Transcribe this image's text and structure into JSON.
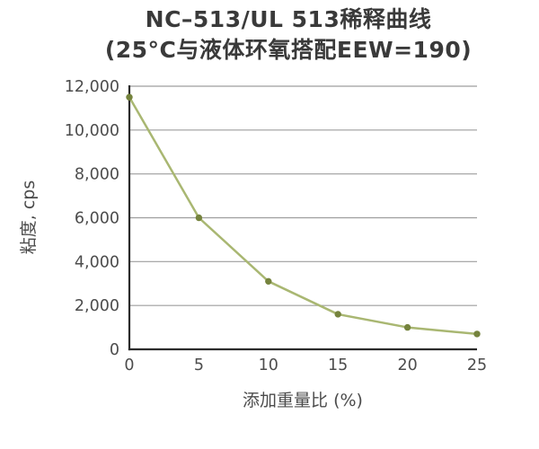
{
  "chart_data": {
    "type": "line",
    "title": "NC–513/UL 513稀释曲线",
    "subtitle": "(25°C与液体环氧搭配EEW=190)",
    "x": [
      0,
      5,
      10,
      15,
      20,
      25
    ],
    "series": [
      {
        "name": "粘度",
        "values": [
          11500,
          6000,
          3100,
          1600,
          1000,
          700
        ]
      }
    ],
    "xlabel": "添加重量比 (%)",
    "ylabel": "粘度, cps",
    "xlim": [
      0,
      25
    ],
    "ylim": [
      0,
      12000
    ],
    "xticks": {
      "values": [
        0,
        5,
        10,
        15,
        20,
        25
      ],
      "labels": [
        "0",
        "5",
        "10",
        "15",
        "20",
        "25"
      ]
    },
    "yticks": {
      "values": [
        0,
        2000,
        4000,
        6000,
        8000,
        10000,
        12000
      ],
      "labels": [
        "0",
        "2,000",
        "4,000",
        "6,000",
        "8,000",
        "10,000",
        "12,000"
      ]
    },
    "grid": "horizontal",
    "legend": "none",
    "marker": "circle"
  },
  "colors": {
    "line": "#a9b772",
    "marker": "#75833d",
    "grid": "#9e9e9e",
    "axis": "#2b2b2b",
    "tick_text": "#4c4c4c",
    "axis_title_text": "#4c4c4c",
    "title_text": "#3a3a3a",
    "background": "#ffffff"
  }
}
